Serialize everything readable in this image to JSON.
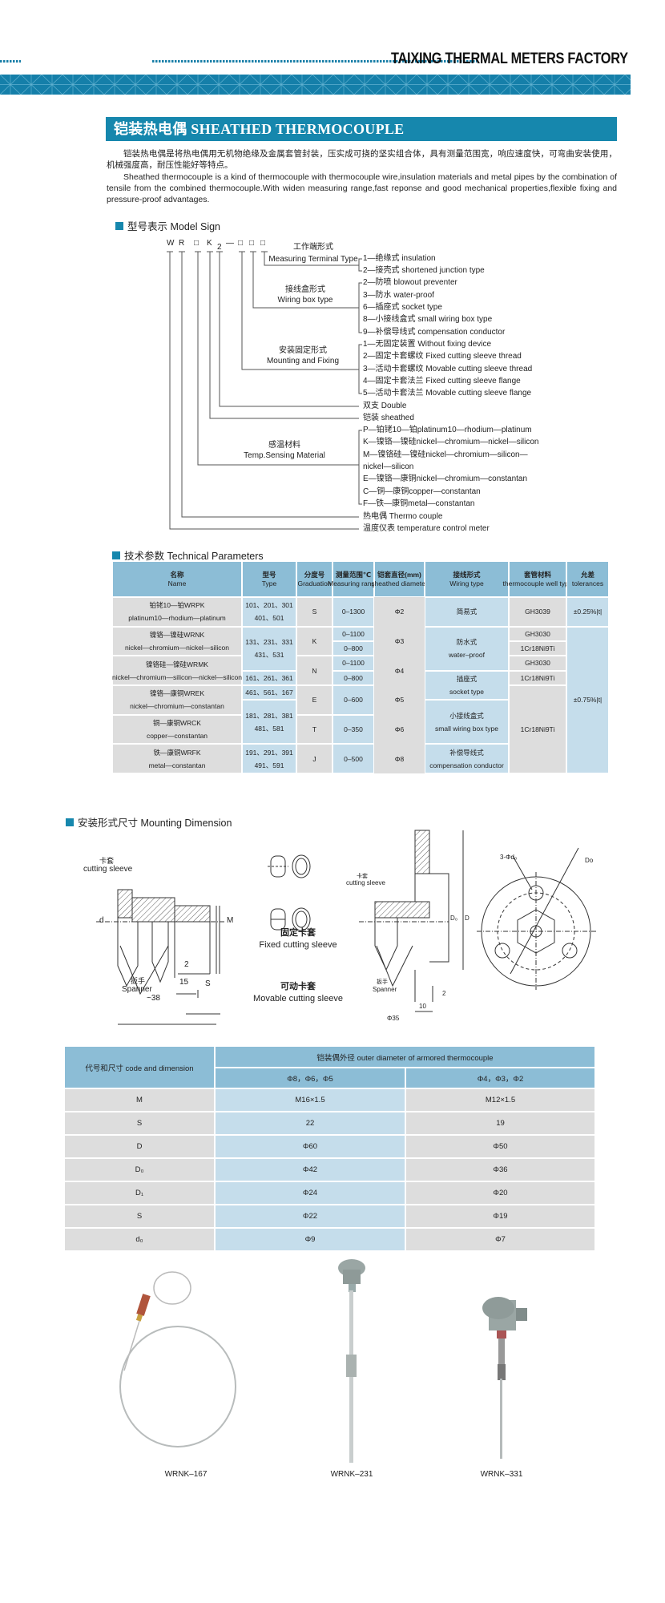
{
  "header": {
    "company": "TAIXING THERMAL METERS FACTORY",
    "accent_color": "#1687ad"
  },
  "section_title": "铠装热电偶 SHEATHED THERMOCOUPLE",
  "intro": {
    "cn": "铠装热电偶是将热电偶用无机物绝缘及金属套管封装，压实成可挠的坚实组合体，具有测量范围宽，响应速度快，可弯曲安装使用，机械强度高，耐压性能好等特点。",
    "en": "Sheathed thermocouple is a kind of thermocouple with thermocouple wire,insulation materials and metal pipes by the combination of tensile from the combined thermocouple.With widen measuring range,fast reponse and good mechanical properties,flexible fixing and pressure-proof advantages."
  },
  "model_sign": {
    "heading": "型号表示 Model Sign",
    "code": [
      "W",
      "R",
      "□",
      "K",
      "2",
      "—",
      "□",
      "□",
      "□"
    ],
    "terminal": {
      "cn": "工作端形式",
      "en": "Measuring Terminal Type",
      "options": [
        "1—绝缘式 insulation",
        "2—接壳式 shortened junction type"
      ]
    },
    "wiring": {
      "cn": "接线盒形式",
      "en": "Wiring box type",
      "options": [
        "2—防喷 blowout preventer",
        "3—防水 water-proof",
        "6—插座式 socket type",
        "8—小接线盒式 small wiring box type",
        "9—补偿导线式 compensation conductor"
      ]
    },
    "mounting": {
      "cn": "安装固定形式",
      "en": "Mounting and Fixing",
      "options": [
        "1—无固定装置 Without fixing device",
        "2—固定卡套螺纹 Fixed cutting sleeve thread",
        "3—活动卡套螺纹 Movable cutting sleeve thread",
        "4—固定卡套法兰 Fixed cutting sleeve flange",
        "5—活动卡套法兰 Movable cutting sleeve flange"
      ]
    },
    "double": "双支 Double",
    "sheathed": "铠装 sheathed",
    "material": {
      "cn": "感温材料",
      "en": "Temp.Sensing Material",
      "options": [
        "P—铂铑10—铂platinum10—rhodium—platinum",
        "K—镍铬—镍硅nickel—chromium—nickel—silicon",
        "M—镍铬硅—镍硅nickel—chromium—silicon—",
        "nickel—silicon",
        "E—镍铬—康铜nickel—chromium—constantan",
        "C—铜—康铜copper—constantan",
        "F—铁—康铜metal—constantan"
      ]
    },
    "thermocouple": "热电偶 Thermo couple",
    "meter": "温度仪表 temperature control meter"
  },
  "technical": {
    "heading": "技术参数 Technical Parameters",
    "headers": [
      {
        "cn": "名称",
        "en": "Name"
      },
      {
        "cn": "型号",
        "en": "Type"
      },
      {
        "cn": "分度号",
        "en": "Graduation"
      },
      {
        "cn": "测量范围℃",
        "en": "Measuring range"
      },
      {
        "cn": "铠套直径(mm)",
        "en": "sheathed diameter"
      },
      {
        "cn": "接线形式",
        "en": "Wiring type"
      },
      {
        "cn": "套管材料",
        "en": "thermocouple well type"
      },
      {
        "cn": "允差",
        "en": "tolerances"
      }
    ],
    "name": [
      [
        "铂铑10—铂WRPK",
        "platinum10—rhodium—platinum"
      ],
      [
        "镍铬—镍硅WRNK",
        "nickel—chromium—nickel—silicon"
      ],
      [
        "镍铬硅—镍硅WRMK",
        "nickel—chromium—silicon—nickel—silicon"
      ],
      [
        "镍铬—康铜WREK",
        "nickel—chromium—constantan"
      ],
      [
        "铜—康铜WRCK",
        "copper—constantan"
      ],
      [
        "铁—康铜WRFK",
        "metal—constantan"
      ]
    ],
    "type": [
      [
        "101、201、301",
        "401、501"
      ],
      [
        "131、231、331",
        "431、531"
      ],
      [
        "161、261、361"
      ],
      [
        "461、561、167"
      ],
      [
        "181、281、381",
        "481、581"
      ],
      [
        "191、291、391",
        "491、591"
      ]
    ],
    "graduation": [
      [
        "S"
      ],
      [
        "K"
      ],
      [
        "N"
      ],
      [
        "E"
      ],
      [
        "T"
      ],
      [
        "J"
      ]
    ],
    "range": [
      [
        "0–1300"
      ],
      [
        "0–1100"
      ],
      [
        "0–800"
      ],
      [
        "0–1100"
      ],
      [
        "0–800"
      ],
      [
        "0–600"
      ],
      [
        "0–350"
      ],
      [
        "0–500"
      ]
    ],
    "diameter": [
      [
        "Φ2"
      ],
      [
        "Φ3"
      ],
      [
        "Φ4"
      ],
      [
        "Φ5"
      ],
      [
        "Φ6"
      ],
      [
        "Φ8"
      ]
    ],
    "wiring": [
      [
        "简易式"
      ],
      [
        "防水式",
        "water–proof"
      ],
      [
        "插座式",
        "socket type"
      ],
      [
        "小接线盒式",
        "small wiring box type"
      ],
      [
        "补偿导线式",
        "compensation conductor"
      ]
    ],
    "well": [
      [
        "GH3039"
      ],
      [
        "GH3030"
      ],
      [
        "1Cr18Ni9Ti"
      ],
      [
        "GH3030"
      ],
      [
        "1Cr18Ni9Ti"
      ],
      [
        "1Cr18Ni9Ti"
      ]
    ],
    "tolerance": [
      [
        "±0.25%|t|"
      ],
      [
        "±0.75%|t|"
      ]
    ]
  },
  "mounting_dimension": {
    "heading": "安装形式尺寸 Mounting Dimension",
    "labels": {
      "cutting_sleeve_cn": "卡套",
      "cutting_sleeve_en": "cutting sleeve",
      "spanner_cn": "扳手",
      "spanner_en": "Spanner",
      "spanner_size": "~38",
      "fixed_cn": "固定卡套",
      "fixed_en": "Fixed cutting sleeve",
      "movable_cn": "可动卡套",
      "movable_en": "Movable cutting sleeve",
      "d": "d",
      "M": "M",
      "dim_2": "2",
      "dim_15": "15",
      "S": "S",
      "D0": "D₀",
      "D": "D",
      "dim_10": "10",
      "dim_35": "Φ35",
      "holes": "3-Φd₀",
      "Do": "Do"
    }
  },
  "dimension_table": {
    "corner": "代号和尺寸 code and dimension",
    "group_header": "铠装偶外径 outer diameter of armored thermocouple",
    "col_headers": [
      "Φ8，Φ6，Φ5",
      "Φ4，Φ3，Φ2"
    ],
    "rows": [
      {
        "code": "M",
        "a": "M16×1.5",
        "b": "M12×1.5"
      },
      {
        "code": "S",
        "a": "22",
        "b": "19"
      },
      {
        "code": "D",
        "a": "Φ60",
        "b": "Φ50"
      },
      {
        "code": "D₀",
        "a": "Φ42",
        "b": "Φ36"
      },
      {
        "code": "D₁",
        "a": "Φ24",
        "b": "Φ20"
      },
      {
        "code": "S",
        "a": "Φ22",
        "b": "Φ19"
      },
      {
        "code": "d₀",
        "a": "Φ9",
        "b": "Φ7"
      }
    ]
  },
  "products": [
    {
      "label": "WRNK–167"
    },
    {
      "label": "WRNK–231"
    },
    {
      "label": "WRNK–331"
    }
  ],
  "colors": {
    "header_blue": "#8cbdd6",
    "light_blue": "#c5ddeb",
    "grey": "#dddddd",
    "accent": "#1687ad"
  }
}
